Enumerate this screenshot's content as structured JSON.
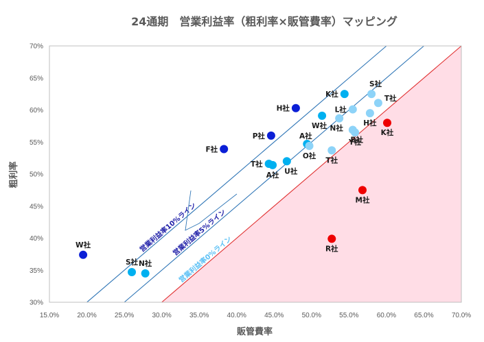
{
  "chart_data": {
    "type": "scatter",
    "title": "24通期　営業利益率（粗利率×販管費率）マッピング",
    "xlabel": "販管費率",
    "ylabel": "粗利率",
    "xlim": [
      0.15,
      0.7
    ],
    "ylim": [
      0.3,
      0.7
    ],
    "x_ticks": [
      "15.0%",
      "20.0%",
      "25.0%",
      "30.0%",
      "35.0%",
      "40.0%",
      "45.0%",
      "50.0%",
      "55.0%",
      "60.0%",
      "65.0%",
      "70.0%"
    ],
    "y_ticks": [
      "30%",
      "35%",
      "40%",
      "45%",
      "50%",
      "55%",
      "60%",
      "65%",
      "70%"
    ],
    "grid": false,
    "colors": {
      "dark_blue": "#0b1fd6",
      "light_blue": "#00b0f0",
      "pale_blue": "#8dd3f8",
      "red": "#ee0000",
      "loss_region": "#ffdde6",
      "line_blue": "#2e75b6",
      "line_red": "#e03030"
    },
    "reference_lines": [
      {
        "label": "営業利益率10%ライン",
        "margin": 0.1,
        "color": "#2e75b6",
        "text_color": "#1f1fa8"
      },
      {
        "label": "営業利益率5%ライン",
        "margin": 0.05,
        "color": "#2e75b6",
        "text_color": "#1f1fa8"
      },
      {
        "label": "営業利益率0%ライン",
        "margin": 0.0,
        "color": "#e03030",
        "text_color": "#5bc0f5"
      }
    ],
    "points": [
      {
        "label": "W社",
        "x": 0.195,
        "y": 0.374,
        "color": "#0b1fd6",
        "pos": "above"
      },
      {
        "label": "S社",
        "x": 0.26,
        "y": 0.347,
        "color": "#00b0f0",
        "pos": "above"
      },
      {
        "label": "N社",
        "x": 0.278,
        "y": 0.345,
        "color": "#00b0f0",
        "pos": "above"
      },
      {
        "label": "F社",
        "x": 0.383,
        "y": 0.539,
        "color": "#0b1fd6",
        "pos": "left"
      },
      {
        "label": "P社",
        "x": 0.446,
        "y": 0.56,
        "color": "#0b1fd6",
        "pos": "left"
      },
      {
        "label": "T社",
        "x": 0.443,
        "y": 0.516,
        "color": "#00b0f0",
        "pos": "left"
      },
      {
        "label": "A社",
        "x": 0.448,
        "y": 0.514,
        "color": "#00b0f0",
        "pos": "below"
      },
      {
        "label": "U社",
        "x": 0.467,
        "y": 0.52,
        "color": "#00b0f0",
        "pos": "belowright"
      },
      {
        "label": "H社",
        "x": 0.479,
        "y": 0.603,
        "color": "#0b1fd6",
        "pos": "left"
      },
      {
        "label": "A社",
        "x": 0.494,
        "y": 0.547,
        "color": "#00b0f0",
        "pos": "aboveleft"
      },
      {
        "label": "O社",
        "x": 0.497,
        "y": 0.544,
        "color": "#8dd3f8",
        "pos": "below"
      },
      {
        "label": "W社",
        "x": 0.514,
        "y": 0.591,
        "color": "#00b0f0",
        "pos": "belowleft"
      },
      {
        "label": "T社",
        "x": 0.527,
        "y": 0.537,
        "color": "#8dd3f8",
        "pos": "below"
      },
      {
        "label": "N社",
        "x": 0.537,
        "y": 0.587,
        "color": "#8dd3f8",
        "pos": "belowleft"
      },
      {
        "label": "K社",
        "x": 0.544,
        "y": 0.625,
        "color": "#00b0f0",
        "pos": "left"
      },
      {
        "label": "L社",
        "x": 0.555,
        "y": 0.601,
        "color": "#8dd3f8",
        "pos": "left"
      },
      {
        "label": "B社",
        "x": 0.555,
        "y": 0.569,
        "color": "#8dd3f8",
        "pos": "belowright"
      },
      {
        "label": "Y社",
        "x": 0.558,
        "y": 0.565,
        "color": "#8dd3f8",
        "pos": "below"
      },
      {
        "label": "H社",
        "x": 0.578,
        "y": 0.595,
        "color": "#8dd3f8",
        "pos": "below"
      },
      {
        "label": "S社",
        "x": 0.58,
        "y": 0.625,
        "color": "#8dd3f8",
        "pos": "aboveright"
      },
      {
        "label": "T社",
        "x": 0.589,
        "y": 0.611,
        "color": "#8dd3f8",
        "pos": "right"
      },
      {
        "label": "K社",
        "x": 0.601,
        "y": 0.58,
        "color": "#ee0000",
        "pos": "below"
      },
      {
        "label": "M社",
        "x": 0.568,
        "y": 0.475,
        "color": "#ee0000",
        "pos": "below"
      },
      {
        "label": "R社",
        "x": 0.527,
        "y": 0.399,
        "color": "#ee0000",
        "pos": "below"
      }
    ]
  }
}
